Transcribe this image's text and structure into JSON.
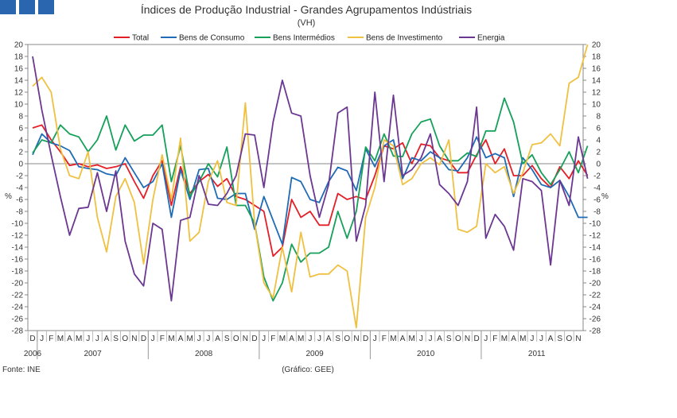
{
  "header": {
    "logo_colors": [
      "#2a66b0",
      "#2a66b0",
      "#2a66b0"
    ]
  },
  "chart_data": {
    "type": "line",
    "title": "Índices de Produção Industrial - Grandes Agrupamentos Indústriais",
    "subtitle": "(VH)",
    "ylabel_left": "%",
    "ylabel_right": "%",
    "ylim": [
      -28,
      20
    ],
    "yticks": [
      20,
      18,
      16,
      14,
      12,
      10,
      8,
      6,
      4,
      2,
      0,
      -2,
      -4,
      -6,
      -8,
      -10,
      -12,
      -14,
      -16,
      -18,
      -20,
      -22,
      -24,
      -26,
      -28
    ],
    "month_labels": [
      "D",
      "J",
      "F",
      "M",
      "A",
      "M",
      "J",
      "J",
      "A",
      "S",
      "O",
      "N",
      "D",
      "J",
      "F",
      "M",
      "A",
      "M",
      "J",
      "J",
      "A",
      "S",
      "O",
      "N",
      "D",
      "J",
      "F",
      "M",
      "A",
      "M",
      "J",
      "J",
      "A",
      "S",
      "O",
      "N",
      "D",
      "J",
      "F",
      "M",
      "A",
      "M",
      "J",
      "J",
      "A",
      "S",
      "O",
      "N",
      "D",
      "J",
      "F",
      "M",
      "A",
      "M",
      "J",
      "J",
      "A",
      "S",
      "O",
      "N"
    ],
    "year_labels": [
      {
        "label": "2006",
        "index": 0
      },
      {
        "label": "2007",
        "index": 6.5
      },
      {
        "label": "2008",
        "index": 18.5
      },
      {
        "label": "2009",
        "index": 30.5
      },
      {
        "label": "2010",
        "index": 42.5
      },
      {
        "label": "2011",
        "index": 54.5
      }
    ],
    "year_separators": [
      0.5,
      12.5,
      24.5,
      36.5,
      48.5
    ],
    "series": [
      {
        "name": "Total",
        "color": "#e41e26",
        "values": [
          6,
          6.5,
          4,
          2,
          -0.3,
          0,
          -0.5,
          -0.2,
          -0.8,
          -0.5,
          0,
          -3,
          -5.8,
          -2,
          0.5,
          -7,
          -0.5,
          -5,
          -3,
          -1.8,
          -3.8,
          -2.5,
          -5.5,
          -6,
          -7,
          -8,
          -15.5,
          -14,
          -6,
          -9,
          -8,
          -10.3,
          -10.3,
          -5,
          -6,
          -5.5,
          -6,
          -2,
          3,
          2.5,
          3.5,
          0,
          3.3,
          3,
          1,
          0.5,
          -1.5,
          -1.5,
          1.5,
          4,
          0,
          2.5,
          -2,
          -2,
          -0.3,
          -2.5,
          -4,
          -0.5,
          -2.5,
          0.5,
          -2
        ]
      },
      {
        "name": "Bens de Consumo",
        "color": "#1f6bb5",
        "values": [
          1.5,
          5,
          3.5,
          3,
          2.2,
          -0.5,
          -0.8,
          -1,
          -1.7,
          -2,
          1,
          -1.5,
          -4,
          -3,
          0,
          -9,
          -1,
          -6,
          -1,
          -0.8,
          -5.8,
          -6,
          -5,
          -5,
          -11,
          -5.5,
          -9.5,
          -13.5,
          -2.3,
          -3,
          -6,
          -6.5,
          -3,
          -0.6,
          -1.2,
          -4.5,
          2.5,
          -0.5,
          3,
          4,
          -2.5,
          1,
          0.5,
          2,
          1,
          -1,
          -1.2,
          1,
          4.5,
          1,
          1.7,
          1,
          -5.5,
          1,
          -1,
          -3.5,
          -4,
          -2.8,
          -5.5,
          -9,
          -9
        ]
      },
      {
        "name": "Bens Intermédios",
        "color": "#16a05a",
        "values": [
          1.8,
          4,
          3.5,
          6.5,
          5,
          4.5,
          2,
          4,
          8,
          2.3,
          6.5,
          3.8,
          4.8,
          4.8,
          6.5,
          -3,
          3,
          -5.5,
          -3,
          0,
          -2.2,
          2.8,
          -7,
          -7,
          -10,
          -19,
          -23,
          -20,
          -13.5,
          -16.5,
          -15,
          -15,
          -14,
          -8,
          -12.5,
          -8,
          2.8,
          0.5,
          5,
          1.3,
          1.2,
          5,
          7,
          7.5,
          3,
          0.5,
          0.5,
          1.8,
          1.2,
          5.5,
          5.5,
          11,
          7,
          0,
          1.5,
          -1.5,
          -3.5,
          -1,
          2,
          -1.5,
          3
        ]
      },
      {
        "name": "Bens de Investimento",
        "color": "#f0c040",
        "values": [
          13,
          14.5,
          12,
          2.5,
          -2,
          -2.5,
          2,
          -9,
          -14.8,
          -5.5,
          -2.5,
          -6.5,
          -16.8,
          -6,
          1.5,
          -6,
          4.3,
          -13,
          -11.5,
          -3,
          0.5,
          -6.5,
          -7,
          10.2,
          -10,
          -20,
          -22.5,
          -14,
          -21.5,
          -11.5,
          -19,
          -18.5,
          -18.5,
          -17,
          -18,
          -27.5,
          -9,
          -4,
          4,
          3,
          -3.5,
          -2.5,
          0,
          1,
          -0.2,
          4,
          -11,
          -11.5,
          -10.5,
          0,
          -1.5,
          -0.5,
          -5,
          -1.5,
          3.2,
          3.5,
          5,
          3,
          13.5,
          14.5,
          20
        ]
      },
      {
        "name": "Energia",
        "color": "#6c3791",
        "values": [
          18,
          9,
          1.5,
          -5.5,
          -12,
          -7.5,
          -7.3,
          -1.5,
          -8,
          -1.2,
          -13,
          -18.5,
          -20.5,
          -10,
          -11,
          -23,
          -9.5,
          -9,
          -2,
          -6.8,
          -7,
          -5,
          -2,
          5,
          4.8,
          -4,
          7,
          14,
          8.5,
          8,
          -2,
          -9,
          -3.5,
          8.5,
          9.5,
          -13,
          -7,
          12,
          -3,
          11.5,
          -2,
          -1,
          1,
          5,
          -3.5,
          -5,
          -7,
          -3,
          9.5,
          -12.5,
          -8.5,
          -10.5,
          -14.5,
          -2.5,
          -3,
          -4.5,
          -17,
          -2.8,
          -7,
          4.5,
          -2.5
        ]
      }
    ]
  },
  "footer": {
    "source": "Fonte: INE",
    "credit": "(Gráfico: GEE)"
  }
}
